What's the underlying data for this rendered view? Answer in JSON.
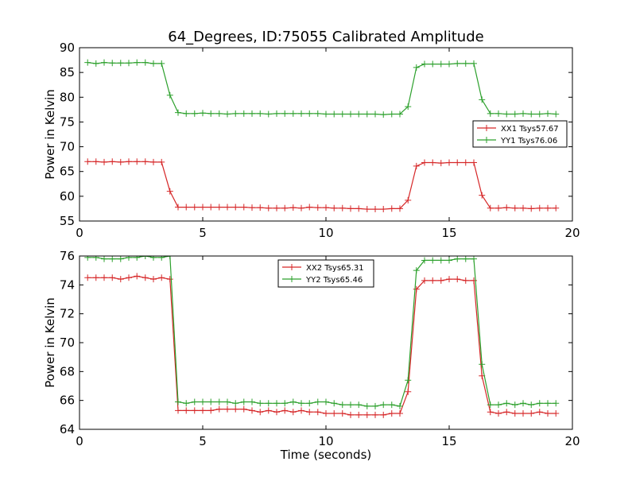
{
  "chart_data": [
    {
      "type": "line",
      "title": "64_Degrees, ID:75055 Calibrated Amplitude",
      "xlabel": "",
      "ylabel": "Power in Kelvin",
      "xlim": [
        0,
        20
      ],
      "ylim": [
        55,
        90
      ],
      "xticks": [
        0,
        5,
        10,
        15,
        20
      ],
      "yticks": [
        55,
        60,
        65,
        70,
        75,
        80,
        85,
        90
      ],
      "legend_position": "right",
      "x": [
        0.33,
        0.67,
        1.0,
        1.33,
        1.67,
        2.0,
        2.33,
        2.67,
        3.0,
        3.33,
        3.67,
        4.0,
        4.33,
        4.67,
        5.0,
        5.33,
        5.67,
        6.0,
        6.33,
        6.67,
        7.0,
        7.33,
        7.67,
        8.0,
        8.33,
        8.67,
        9.0,
        9.33,
        9.67,
        10.0,
        10.33,
        10.67,
        11.0,
        11.33,
        11.67,
        12.0,
        12.33,
        12.67,
        13.0,
        13.33,
        13.67,
        14.0,
        14.33,
        14.67,
        15.0,
        15.33,
        15.67,
        16.0,
        16.33,
        16.67,
        17.0,
        17.33,
        17.67,
        18.0,
        18.33,
        18.67,
        19.0,
        19.33
      ],
      "series": [
        {
          "name": "XX1 Tsys57.67",
          "color": "#d62728",
          "values": [
            67.0,
            67.0,
            66.9,
            67.0,
            66.9,
            67.0,
            67.0,
            67.0,
            66.9,
            66.9,
            61.0,
            57.8,
            57.8,
            57.8,
            57.8,
            57.8,
            57.8,
            57.8,
            57.8,
            57.8,
            57.7,
            57.7,
            57.6,
            57.6,
            57.6,
            57.7,
            57.6,
            57.8,
            57.7,
            57.7,
            57.6,
            57.6,
            57.5,
            57.5,
            57.4,
            57.4,
            57.4,
            57.5,
            57.5,
            59.2,
            66.1,
            66.8,
            66.8,
            66.7,
            66.8,
            66.8,
            66.8,
            66.8,
            60.2,
            57.6,
            57.6,
            57.7,
            57.6,
            57.6,
            57.5,
            57.6,
            57.6,
            57.6
          ]
        },
        {
          "name": "YY1 Tsys76.06",
          "color": "#2ca02c",
          "values": [
            87.0,
            86.8,
            87.0,
            86.9,
            86.9,
            86.9,
            87.0,
            87.0,
            86.8,
            86.8,
            80.4,
            76.9,
            76.7,
            76.7,
            76.8,
            76.7,
            76.7,
            76.6,
            76.7,
            76.7,
            76.7,
            76.7,
            76.6,
            76.7,
            76.7,
            76.7,
            76.7,
            76.7,
            76.7,
            76.6,
            76.6,
            76.6,
            76.6,
            76.6,
            76.6,
            76.6,
            76.5,
            76.6,
            76.6,
            78.1,
            86.0,
            86.7,
            86.7,
            86.7,
            86.7,
            86.8,
            86.8,
            86.8,
            79.5,
            76.7,
            76.7,
            76.6,
            76.6,
            76.7,
            76.6,
            76.6,
            76.7,
            76.6
          ]
        }
      ]
    },
    {
      "type": "line",
      "title": "",
      "xlabel": "Time (seconds)",
      "ylabel": "Power in Kelvin",
      "xlim": [
        0,
        20
      ],
      "ylim": [
        64,
        76
      ],
      "xticks": [
        0,
        5,
        10,
        15,
        20
      ],
      "yticks": [
        64,
        66,
        68,
        70,
        72,
        74,
        76
      ],
      "legend_position": "top-center",
      "x": [
        0.33,
        0.67,
        1.0,
        1.33,
        1.67,
        2.0,
        2.33,
        2.67,
        3.0,
        3.33,
        3.67,
        4.0,
        4.33,
        4.67,
        5.0,
        5.33,
        5.67,
        6.0,
        6.33,
        6.67,
        7.0,
        7.33,
        7.67,
        8.0,
        8.33,
        8.67,
        9.0,
        9.33,
        9.67,
        10.0,
        10.33,
        10.67,
        11.0,
        11.33,
        11.67,
        12.0,
        12.33,
        12.67,
        13.0,
        13.33,
        13.67,
        14.0,
        14.33,
        14.67,
        15.0,
        15.33,
        15.67,
        16.0,
        16.33,
        16.67,
        17.0,
        17.33,
        17.67,
        18.0,
        18.33,
        18.67,
        19.0,
        19.33
      ],
      "series": [
        {
          "name": "XX2 Tsys65.31",
          "color": "#d62728",
          "values": [
            74.5,
            74.5,
            74.5,
            74.5,
            74.4,
            74.5,
            74.6,
            74.5,
            74.4,
            74.5,
            74.4,
            65.3,
            65.3,
            65.3,
            65.3,
            65.3,
            65.4,
            65.4,
            65.4,
            65.4,
            65.3,
            65.2,
            65.3,
            65.2,
            65.3,
            65.2,
            65.3,
            65.2,
            65.2,
            65.1,
            65.1,
            65.1,
            65.0,
            65.0,
            65.0,
            65.0,
            65.0,
            65.1,
            65.1,
            66.6,
            73.7,
            74.3,
            74.3,
            74.3,
            74.4,
            74.4,
            74.3,
            74.3,
            67.7,
            65.2,
            65.1,
            65.2,
            65.1,
            65.1,
            65.1,
            65.2,
            65.1,
            65.1
          ]
        },
        {
          "name": "YY2 Tsys65.46",
          "color": "#2ca02c",
          "values": [
            75.9,
            75.9,
            75.8,
            75.8,
            75.8,
            75.9,
            75.9,
            76.0,
            75.9,
            75.9,
            76.0,
            65.9,
            65.8,
            65.9,
            65.9,
            65.9,
            65.9,
            65.9,
            65.8,
            65.9,
            65.9,
            65.8,
            65.8,
            65.8,
            65.8,
            65.9,
            65.8,
            65.8,
            65.9,
            65.9,
            65.8,
            65.7,
            65.7,
            65.7,
            65.6,
            65.6,
            65.7,
            65.7,
            65.6,
            67.4,
            75.0,
            75.7,
            75.7,
            75.7,
            75.7,
            75.8,
            75.8,
            75.8,
            68.5,
            65.7,
            65.7,
            65.8,
            65.7,
            65.8,
            65.7,
            65.8,
            65.8,
            65.8
          ]
        }
      ]
    }
  ]
}
